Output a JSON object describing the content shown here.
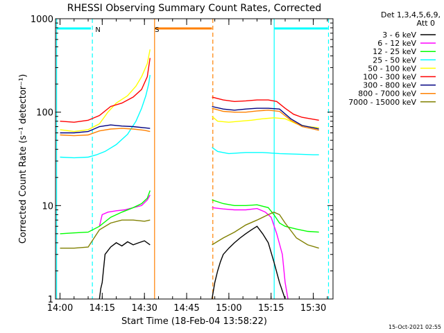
{
  "chart_data": {
    "type": "line",
    "title": "RHESSI Observing Summary Count Rates, Corrected",
    "xlabel": "Start Time (18-Feb-04 13:58:22)",
    "ylabel": "Corrected Count Rate (s⁻¹ detector⁻¹)",
    "yscale": "log",
    "ylim": [
      1,
      1000
    ],
    "xlim": [
      -1.6,
      97.0
    ],
    "x_unit": "minutes since 14:00",
    "x_ticks": [
      0,
      15,
      30,
      45,
      60,
      75,
      90
    ],
    "x_tick_labels": [
      "14:00",
      "14:15",
      "14:30",
      "14:45",
      "15:00",
      "15:15",
      "15:30"
    ],
    "y_ticks": [
      1,
      10,
      100,
      1000
    ],
    "y_tick_labels": [
      "1",
      "10",
      "100",
      "1000"
    ],
    "legend_header": [
      "Det 1,3,4,5,6,9,",
      "Att 0"
    ],
    "legend_placement": "right",
    "data_gap": [
      33,
      54
    ],
    "series": [
      {
        "name": "3 - 6 keV",
        "color": "#000000",
        "x": [
          14,
          14.5,
          15,
          16,
          18,
          20,
          22,
          24,
          26,
          28,
          30,
          32,
          54,
          55,
          56,
          57,
          58,
          60,
          62,
          64,
          66,
          68,
          70,
          72,
          74,
          76,
          78,
          80
        ],
        "y": [
          1,
          1.3,
          1.5,
          3,
          3.6,
          4,
          3.7,
          4.1,
          3.8,
          4,
          4.2,
          3.8,
          1,
          1.5,
          2,
          2.5,
          3,
          3.5,
          4,
          4.5,
          5,
          5.5,
          6,
          5,
          4,
          2.5,
          1.5,
          1
        ]
      },
      {
        "name": "6 - 12 keV",
        "color": "#ff00ff",
        "x": [
          14,
          15,
          17,
          20,
          23,
          26,
          29,
          31,
          32,
          54,
          58,
          62,
          66,
          70,
          73,
          75,
          77,
          79,
          80,
          81
        ],
        "y": [
          6,
          8,
          8.5,
          8.8,
          9,
          9.5,
          10,
          11.5,
          13,
          9.5,
          9.2,
          9,
          9,
          9.3,
          8.5,
          7.5,
          5,
          3,
          1.5,
          1
        ]
      },
      {
        "name": "12 - 25 keV",
        "color": "#00ff00",
        "x": [
          0,
          5,
          10,
          14,
          18,
          22,
          26,
          29,
          31,
          32,
          54,
          58,
          62,
          66,
          70,
          74,
          76,
          78,
          80,
          84,
          88,
          92
        ],
        "y": [
          5,
          5.1,
          5.2,
          6,
          7.5,
          8.5,
          9.5,
          10.5,
          12,
          14.5,
          11.5,
          10.5,
          10,
          10,
          10.2,
          9.5,
          8,
          6.5,
          6,
          5.6,
          5.3,
          5.2
        ]
      },
      {
        "name": "25 - 50 keV",
        "color": "#00ffff",
        "x": [
          0,
          5,
          10,
          13,
          16,
          20,
          24,
          27,
          29,
          30.5,
          31.5,
          32,
          54,
          56,
          60,
          66,
          72,
          78,
          84,
          90,
          92
        ],
        "y": [
          33,
          32.5,
          33,
          35,
          38,
          45,
          58,
          80,
          110,
          150,
          200,
          250,
          42,
          38,
          36,
          37,
          37,
          36,
          35.5,
          35,
          35
        ]
      },
      {
        "name": "50 - 100 keV",
        "color": "#ffff00",
        "x": [
          0,
          5,
          10,
          14,
          17,
          20,
          24,
          27,
          29,
          31,
          32,
          54,
          56,
          60,
          64,
          68,
          72,
          76,
          80,
          84,
          88,
          92
        ],
        "y": [
          65,
          62,
          65,
          75,
          100,
          125,
          150,
          190,
          240,
          330,
          470,
          90,
          80,
          78,
          80,
          82,
          85,
          87,
          85,
          75,
          70,
          68
        ]
      },
      {
        "name": "100 - 300 keV",
        "color": "#ff0000",
        "x": [
          0,
          5,
          10,
          14,
          18,
          22,
          26,
          29,
          31,
          32,
          54,
          58,
          62,
          66,
          70,
          74,
          77,
          80,
          83,
          86,
          89,
          92
        ],
        "y": [
          80,
          78,
          82,
          92,
          115,
          125,
          145,
          175,
          240,
          380,
          145,
          135,
          130,
          132,
          135,
          135,
          130,
          110,
          95,
          88,
          85,
          82
        ]
      },
      {
        "name": "300 - 800 keV",
        "color": "#000080",
        "x": [
          0,
          5,
          10,
          14,
          18,
          22,
          26,
          30,
          32,
          54,
          58,
          62,
          66,
          70,
          74,
          78,
          82,
          86,
          90,
          92
        ],
        "y": [
          60,
          60,
          62,
          70,
          73,
          71,
          70,
          68,
          67,
          115,
          108,
          105,
          108,
          110,
          110,
          108,
          85,
          72,
          68,
          66
        ]
      },
      {
        "name": "800 - 7000 keV",
        "color": "#ff8000",
        "x": [
          0,
          5,
          10,
          14,
          18,
          22,
          26,
          30,
          32,
          54,
          58,
          62,
          66,
          70,
          74,
          78,
          82,
          86,
          90,
          92
        ],
        "y": [
          57,
          56,
          57,
          63,
          66,
          67,
          66,
          64,
          62,
          110,
          102,
          100,
          100,
          103,
          105,
          102,
          82,
          70,
          66,
          64
        ]
      },
      {
        "name": "7000 - 15000 keV",
        "color": "#808000",
        "x": [
          0,
          5,
          10,
          14,
          18,
          22,
          26,
          30,
          32,
          54,
          58,
          62,
          66,
          70,
          74,
          76,
          78,
          80,
          84,
          88,
          92
        ],
        "y": [
          3.5,
          3.5,
          3.6,
          5.5,
          6.5,
          7,
          7,
          6.8,
          7,
          3.8,
          4.5,
          5.2,
          6.2,
          7,
          8,
          8.5,
          8,
          6.5,
          4.5,
          3.8,
          3.5
        ]
      }
    ],
    "annotations": [
      {
        "label": "N",
        "color": "#00ffff",
        "marker_x": 11.5,
        "bar_segments": [
          [
            -1.2,
            11.0
          ],
          [
            76.2,
            95.2
          ]
        ],
        "dashed_lines": [
          11.5,
          95.4
        ],
        "solid_lines": [
          -1.2,
          76.1
        ]
      },
      {
        "label": "S",
        "color": "#ff8000",
        "marker_x": 32.5,
        "bar_segments": [
          [
            33.8,
            54.0
          ]
        ],
        "dashed_lines": [
          54.3
        ],
        "solid_lines": [
          33.6
        ]
      }
    ]
  },
  "footer": {
    "timestamp": "15-Oct-2021 02:55"
  }
}
